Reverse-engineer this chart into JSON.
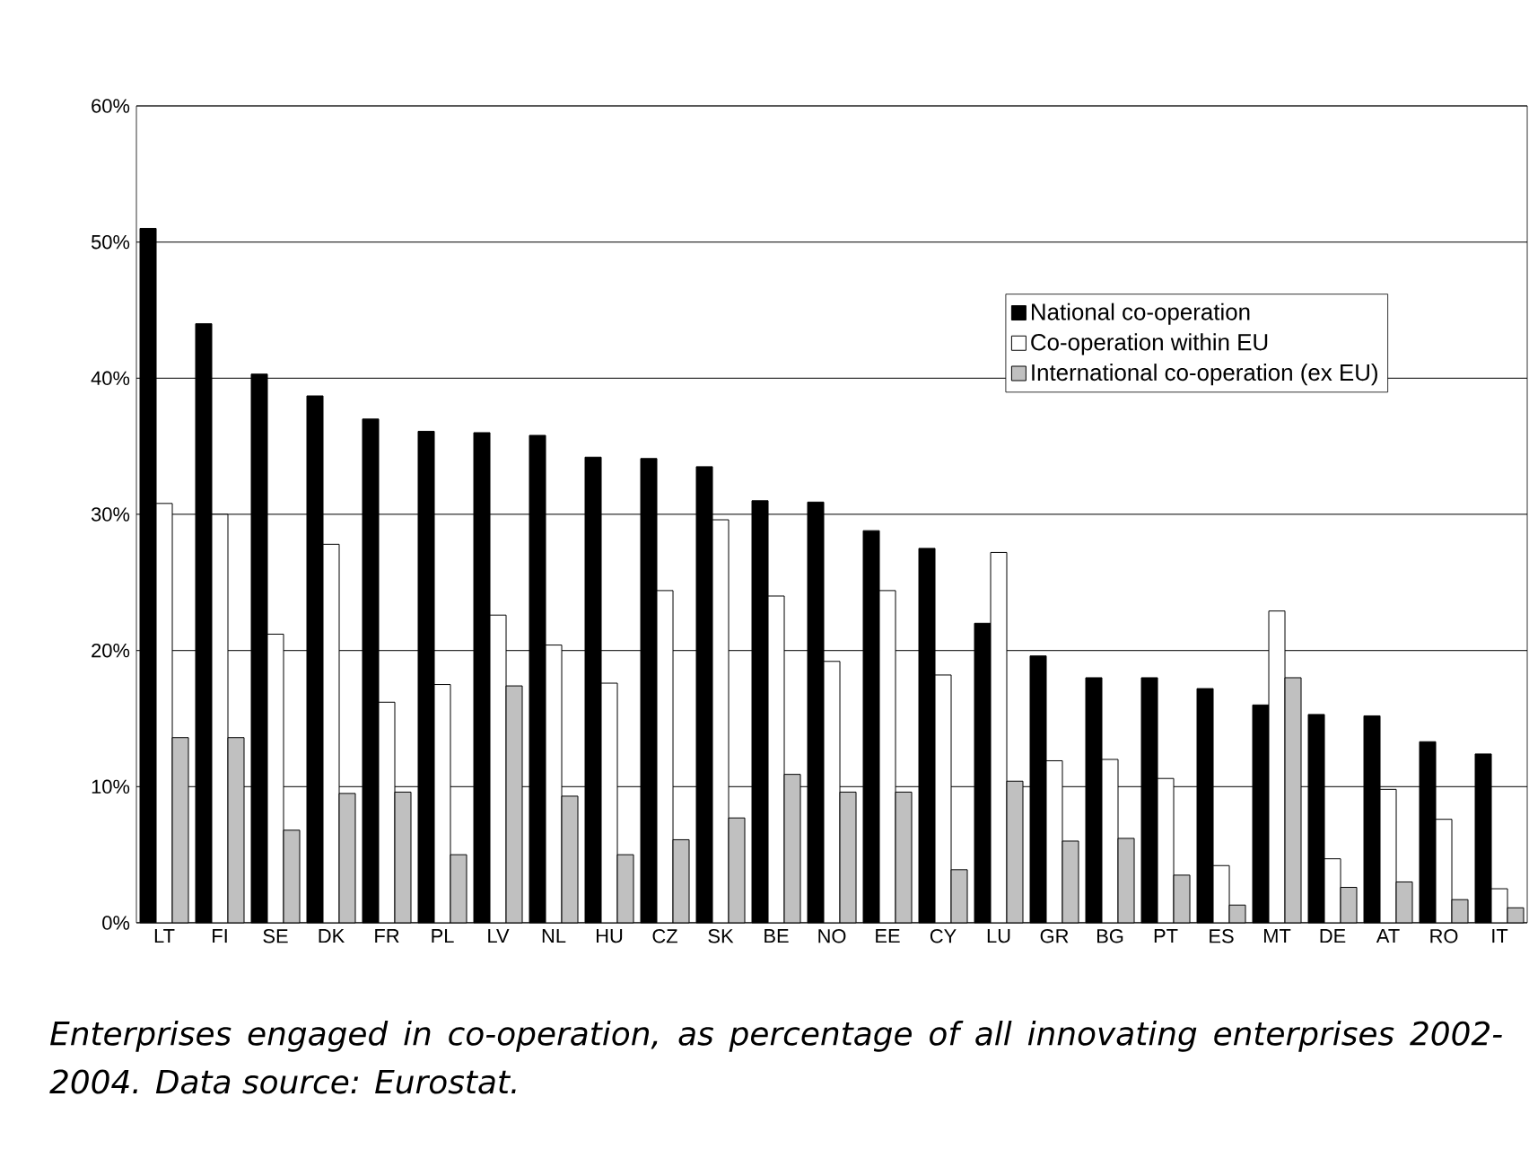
{
  "chart_data": {
    "type": "bar",
    "categories": [
      "LT",
      "FI",
      "SE",
      "DK",
      "FR",
      "PL",
      "LV",
      "NL",
      "HU",
      "CZ",
      "SK",
      "BE",
      "NO",
      "EE",
      "CY",
      "LU",
      "GR",
      "BG",
      "PT",
      "ES",
      "MT",
      "DE",
      "AT",
      "RO",
      "IT"
    ],
    "series": [
      {
        "name": "National co-operation",
        "color": "#000000",
        "values": [
          51,
          44,
          40.3,
          38.7,
          37,
          36.1,
          36,
          35.8,
          34.2,
          34.1,
          33.5,
          31,
          30.9,
          28.8,
          27.5,
          22,
          19.6,
          18,
          18,
          17.2,
          16,
          15.3,
          15.2,
          13.3,
          12.4
        ]
      },
      {
        "name": "Co-operation within EU",
        "color": "#ffffff",
        "values": [
          30.8,
          30,
          21.2,
          27.8,
          16.2,
          17.5,
          22.6,
          20.4,
          17.6,
          24.4,
          29.6,
          24,
          19.2,
          24.4,
          18.2,
          27.2,
          11.9,
          12,
          10.6,
          4.2,
          22.9,
          4.7,
          9.8,
          7.6,
          2.5
        ]
      },
      {
        "name": "International co-operation (ex EU)",
        "color": "#c0c0c0",
        "values": [
          13.6,
          13.6,
          6.8,
          9.5,
          9.6,
          5,
          17.4,
          9.3,
          5,
          6.1,
          7.7,
          10.9,
          9.6,
          9.6,
          3.9,
          10.4,
          6,
          6.2,
          3.5,
          1.3,
          18,
          2.6,
          3,
          1.7,
          1.1
        ]
      }
    ],
    "ylim": [
      0,
      60
    ],
    "yticks": [
      {
        "value": 0,
        "label": "0%"
      },
      {
        "value": 10,
        "label": "10%"
      },
      {
        "value": 20,
        "label": "20%"
      },
      {
        "value": 30,
        "label": "30%"
      },
      {
        "value": 40,
        "label": "40%"
      },
      {
        "value": 50,
        "label": "50%"
      },
      {
        "value": 60,
        "label": "60%"
      }
    ],
    "grid": "y",
    "legend": "top right",
    "annotations": [
      "*Enterprises engaged in co-operation, as percentage of all innovating enterprises 2002-2004. Data source: Eurostat.*"
    ]
  }
}
